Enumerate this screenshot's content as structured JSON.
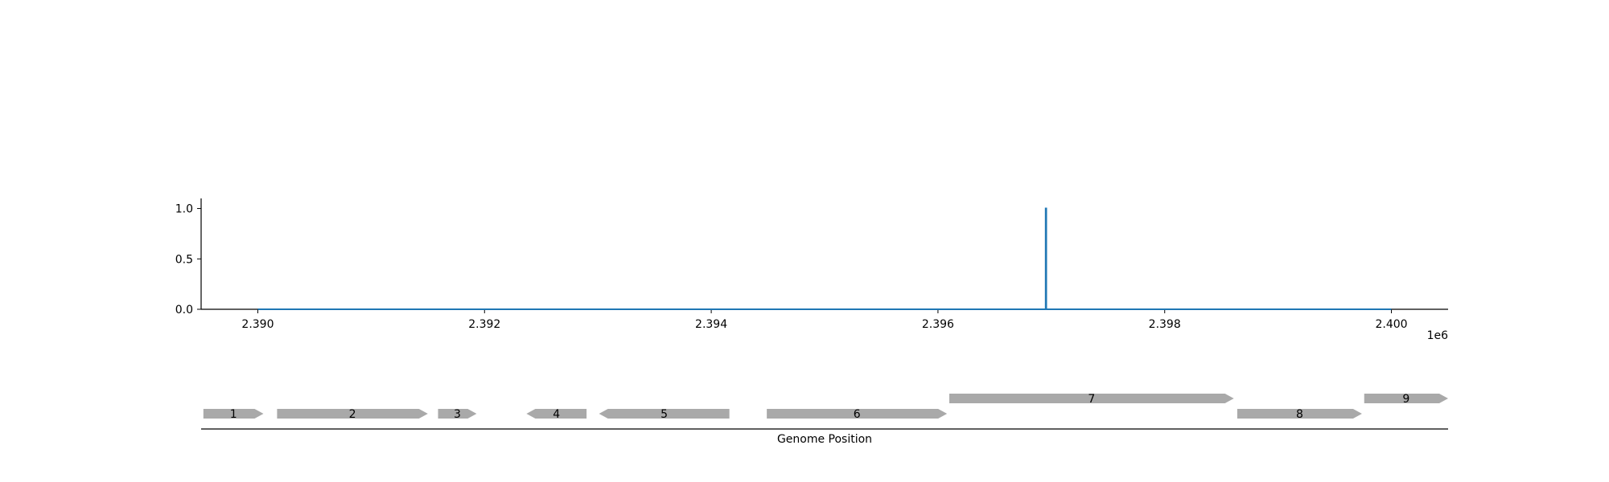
{
  "chart_data": {
    "type": "line",
    "xlabel": "Genome Position",
    "x_offset_label": "1e6",
    "xlim": [
      2389500,
      2400500
    ],
    "ylim": [
      0,
      1.1
    ],
    "x_ticks": [
      2390000,
      2392000,
      2394000,
      2396000,
      2398000,
      2400000
    ],
    "x_tick_labels": [
      "2.390",
      "2.392",
      "2.394",
      "2.396",
      "2.398",
      "2.400"
    ],
    "y_ticks": [
      0,
      0.5,
      1.0
    ],
    "y_tick_labels": [
      "0.0",
      "0.5",
      "1.0"
    ],
    "series": [
      {
        "color": "#1f77b4",
        "points": [
          [
            2390000,
            0
          ],
          [
            2396950,
            0
          ],
          [
            2396950,
            1.0
          ],
          [
            2396955,
            1.0
          ],
          [
            2396955,
            0
          ],
          [
            2400000,
            0
          ]
        ]
      }
    ],
    "genes": [
      {
        "label": "1",
        "start": 2389520,
        "end": 2390050,
        "strand": "+",
        "row": 0
      },
      {
        "label": "2",
        "start": 2390170,
        "end": 2391500,
        "strand": "+",
        "row": 0
      },
      {
        "label": "3",
        "start": 2391590,
        "end": 2391930,
        "strand": "+",
        "row": 0
      },
      {
        "label": "4",
        "start": 2392370,
        "end": 2392900,
        "strand": "-",
        "row": 0
      },
      {
        "label": "5",
        "start": 2393010,
        "end": 2394160,
        "strand": "-",
        "row": 0
      },
      {
        "label": "6",
        "start": 2394490,
        "end": 2396080,
        "strand": "+",
        "row": 0
      },
      {
        "label": "7",
        "start": 2396100,
        "end": 2398610,
        "strand": "+",
        "row": 1
      },
      {
        "label": "8",
        "start": 2398640,
        "end": 2399740,
        "strand": "+",
        "row": 0
      },
      {
        "label": "9",
        "start": 2399760,
        "end": 2400500,
        "strand": "+",
        "row": 1
      }
    ],
    "gene_color": "#a9a9a9",
    "grid": false
  }
}
